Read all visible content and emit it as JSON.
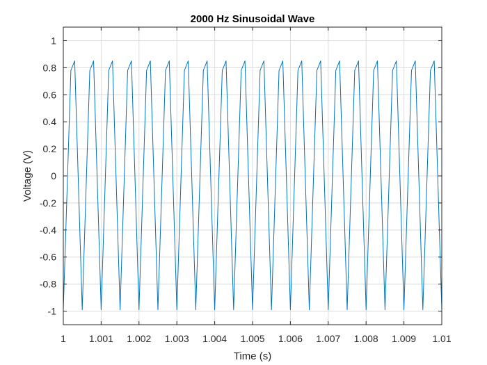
{
  "chart_data": {
    "type": "line",
    "title": "2000 Hz Sinusoidal Wave",
    "xlabel": "Time (s)",
    "ylabel": "Voltage (V)",
    "xlim": [
      1,
      1.01
    ],
    "ylim": [
      -1.1,
      1.1
    ],
    "grid": true,
    "x_ticks": [
      1,
      1.001,
      1.002,
      1.003,
      1.004,
      1.005,
      1.006,
      1.007,
      1.008,
      1.009,
      1.01
    ],
    "x_tick_labels": [
      "1",
      "1.001",
      "1.002",
      "1.003",
      "1.004",
      "1.005",
      "1.006",
      "1.007",
      "1.008",
      "1.009",
      "1.01"
    ],
    "y_ticks": [
      -1,
      -0.8,
      -0.6,
      -0.4,
      -0.2,
      0,
      0.2,
      0.4,
      0.6,
      0.8,
      1
    ],
    "y_tick_labels": [
      "-1",
      "-0.8",
      "-0.6",
      "-0.4",
      "-0.2",
      "0",
      "0.2",
      "0.4",
      "0.6",
      "0.8",
      "1"
    ],
    "series": [
      {
        "color": "#0072bd",
        "x": [
          1.0,
          1.0002,
          1.0003,
          1.0005,
          1.0007,
          1.0008,
          1.001,
          1.0012,
          1.0013,
          1.0015,
          1.0017,
          1.0018,
          1.002,
          1.0022,
          1.0023,
          1.0025,
          1.0027,
          1.0028,
          1.003,
          1.0032,
          1.0033,
          1.0035,
          1.0037,
          1.0038,
          1.004,
          1.0042,
          1.0043,
          1.0045,
          1.0047,
          1.0048,
          1.005,
          1.0052,
          1.0053,
          1.0055,
          1.0057,
          1.0058,
          1.006,
          1.0062,
          1.0063,
          1.0065,
          1.0067,
          1.0068,
          1.007,
          1.0072,
          1.0073,
          1.0075,
          1.0077,
          1.0078,
          1.008,
          1.0082,
          1.0083,
          1.0085,
          1.0087,
          1.0088,
          1.009,
          1.0092,
          1.0093,
          1.0095,
          1.0097,
          1.0098,
          1.01
        ],
        "y": [
          -0.99,
          0.78,
          0.85,
          -0.99,
          0.78,
          0.85,
          -0.99,
          0.78,
          0.85,
          -0.99,
          0.78,
          0.85,
          -0.99,
          0.78,
          0.85,
          -0.99,
          0.78,
          0.85,
          -0.99,
          0.78,
          0.85,
          -0.99,
          0.78,
          0.85,
          -0.99,
          0.78,
          0.85,
          -0.99,
          0.78,
          0.85,
          -0.99,
          0.78,
          0.85,
          -0.99,
          0.78,
          0.85,
          -0.99,
          0.78,
          0.85,
          -0.99,
          0.78,
          0.85,
          -0.99,
          0.78,
          0.85,
          -0.99,
          0.78,
          0.85,
          -0.99,
          0.78,
          0.85,
          -0.99,
          0.78,
          0.85,
          -0.99,
          0.78,
          0.85,
          -0.99,
          0.78,
          0.85,
          -0.99
        ]
      }
    ]
  }
}
